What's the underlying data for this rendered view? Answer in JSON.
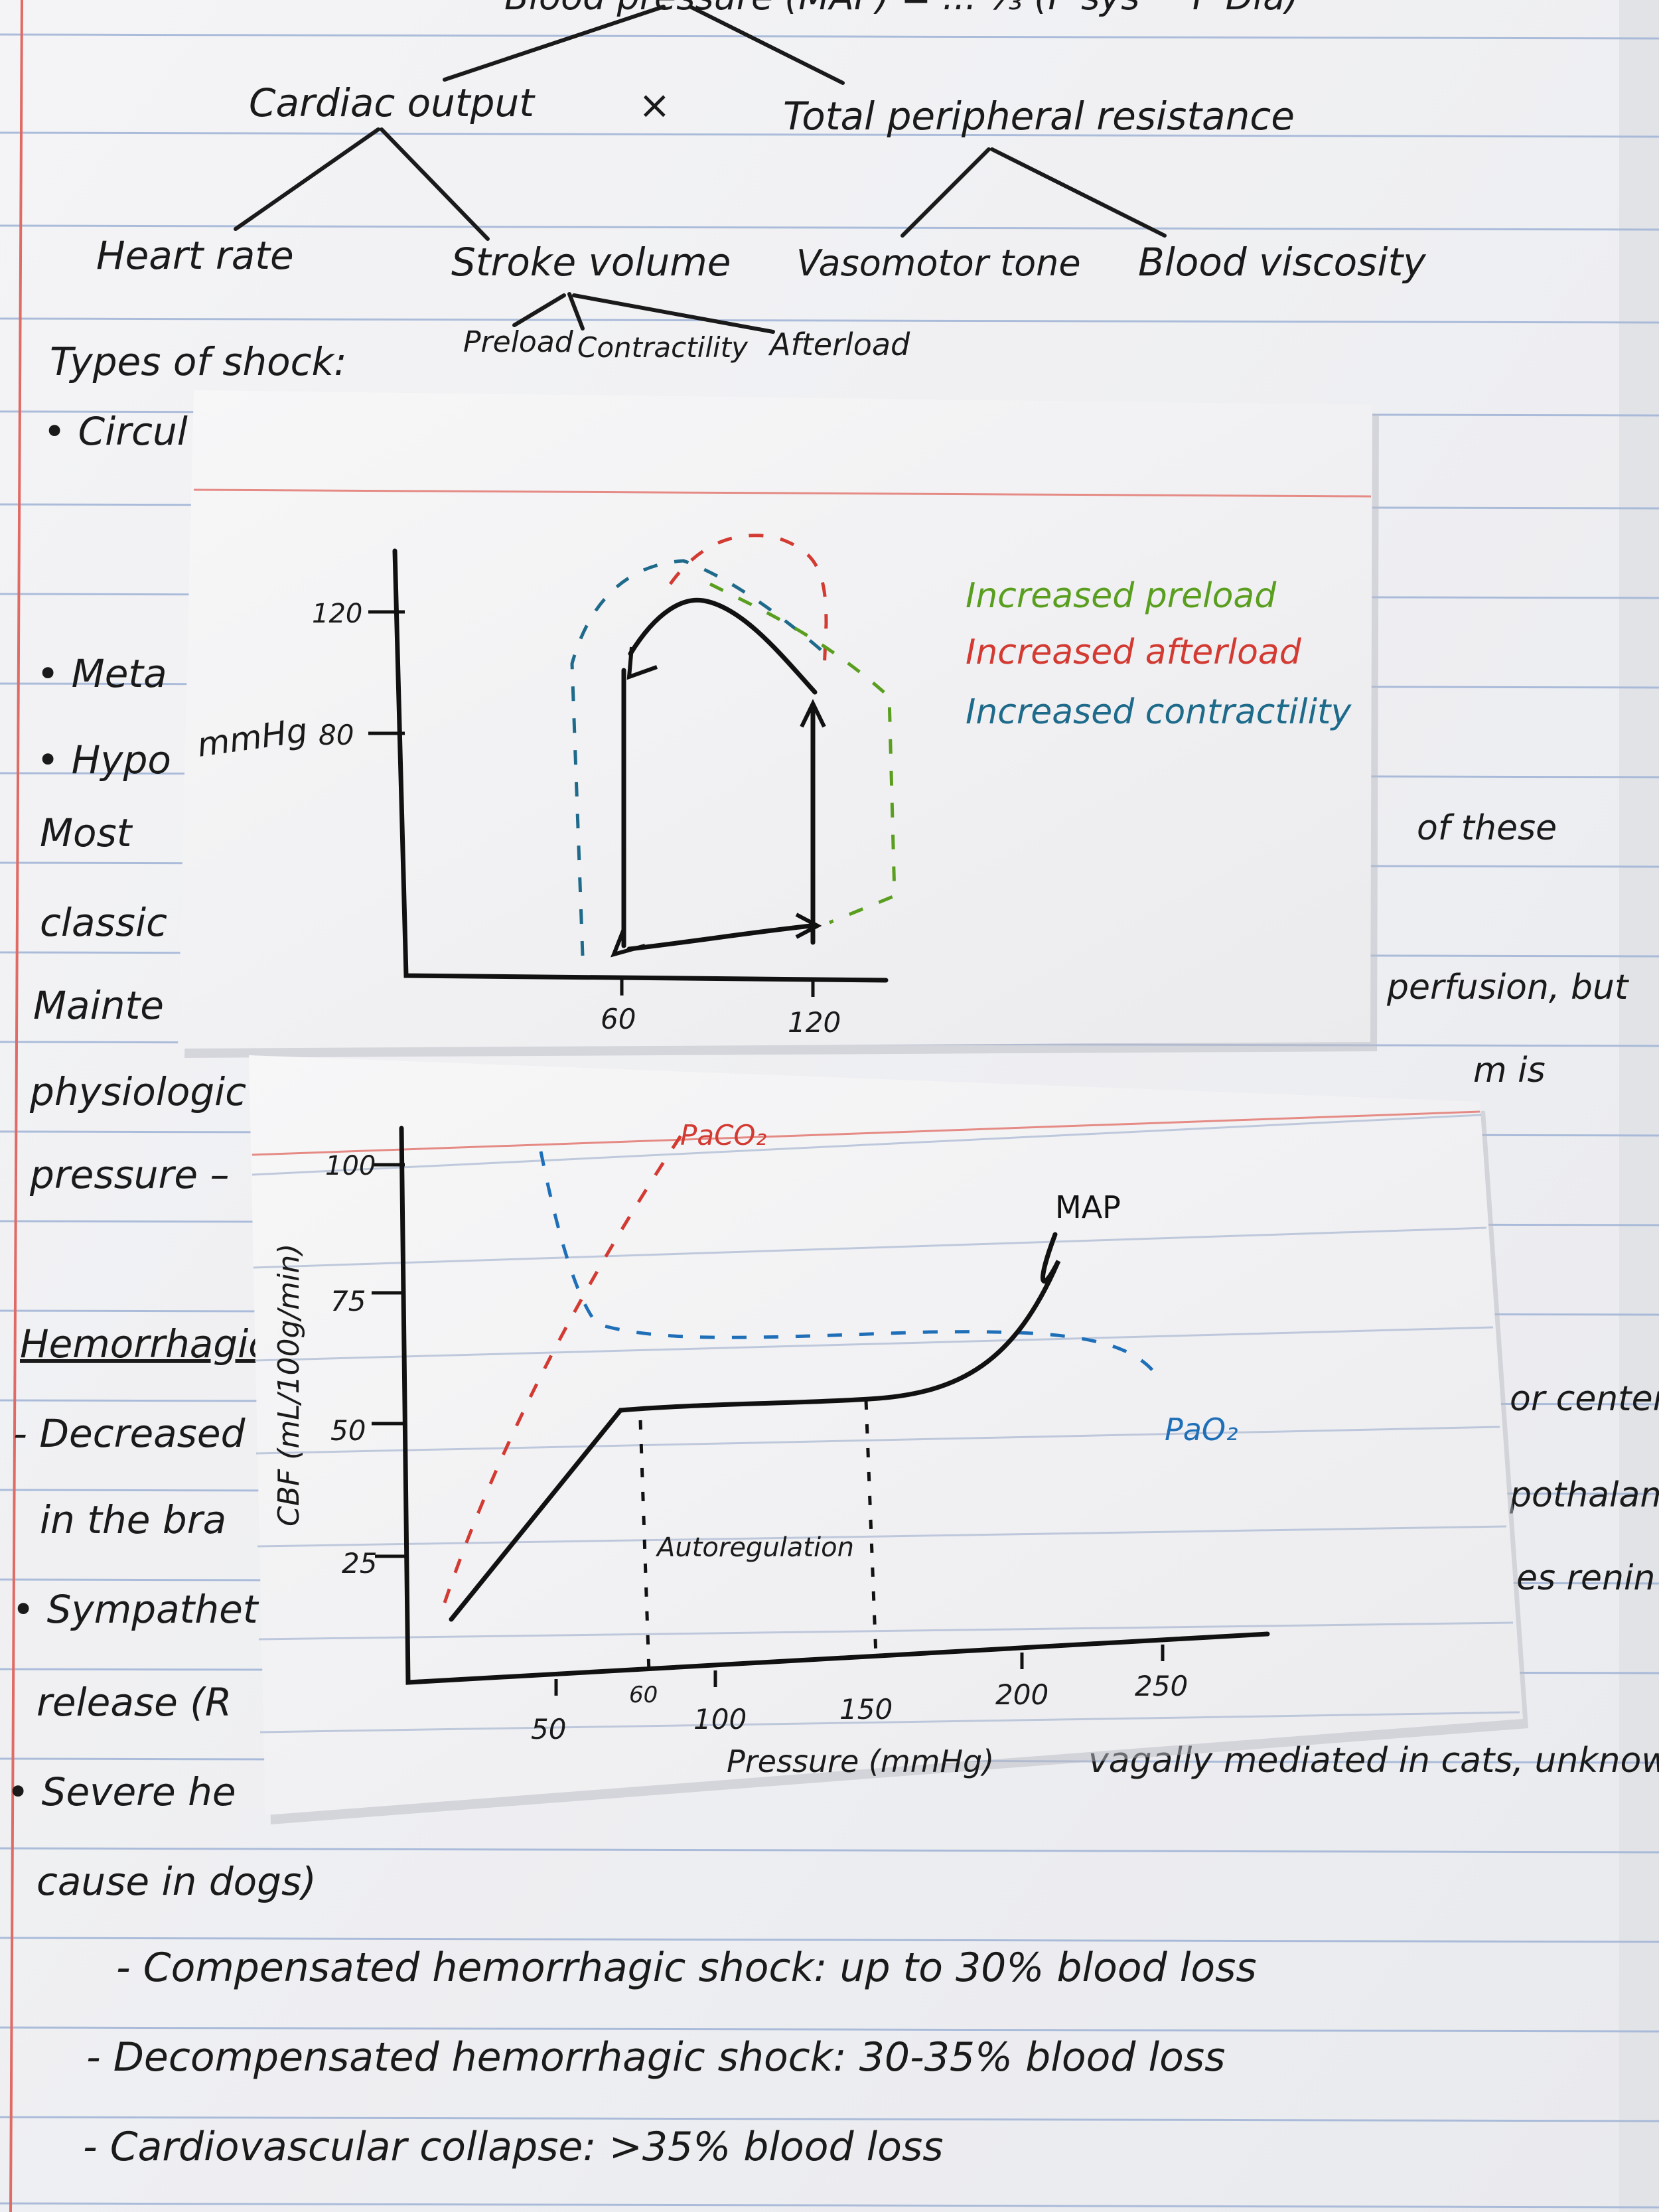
{
  "notebook": {
    "top_formula": {
      "partial": "Blood pressure (MAP) = ... ⅓ (P sys − P Dia)"
    },
    "tree": {
      "cardiac_output": "Cardiac output",
      "times": "×",
      "tpr": "Total peripheral resistance",
      "heart_rate": "Heart rate",
      "stroke_volume": "Stroke volume",
      "vasomotor_tone": "Vasomotor tone",
      "blood_viscosity": "Blood viscosity",
      "preload": "Preload",
      "contractility": "Contractility",
      "afterload": "Afterload"
    },
    "left_lines": {
      "types_of_shock": "Types of shock:",
      "circul": "• Circul",
      "meta": "• Meta",
      "hypo": "• Hypo",
      "most": "Most",
      "classic": "classic",
      "mainte": "Mainte",
      "physiologic": "physiologic",
      "pressure": "pressure –",
      "hemorrhagic": "Hemorrhagic",
      "decreased": "- Decreased",
      "in_the_bra": "in the bra",
      "sympathet": "• Sympathet",
      "release": "release (R",
      "severe": "• Severe he",
      "cause_in_dogs": "cause in dogs)"
    },
    "right_fragments": {
      "of_these": "of these",
      "perfusion_but": "perfusion, but",
      "m_is": "m is",
      "or_center": "or center",
      "pothalamu": "pothalamu",
      "es_renin": "es renin",
      "vagally": "vagally mediated in cats, unknow"
    },
    "bullets": [
      "- Compensated hemorrhagic shock: up to 30% blood loss",
      "- Decompensated hemorrhagic shock: 30-35% blood loss",
      "- Cardiovascular collapse: >35% blood loss"
    ]
  },
  "card_pv_loop": {
    "y_unit": "mmHg",
    "y_ticks": [
      "120",
      "80"
    ],
    "x_ticks": [
      "60",
      "120"
    ],
    "legend": [
      {
        "label": "Increased preload",
        "color": "#5a9e1f"
      },
      {
        "label": "Increased afterload",
        "color": "#d23a32"
      },
      {
        "label": "Increased contractility",
        "color": "#1e6a8a"
      }
    ]
  },
  "card_cbf": {
    "ylabel": "CBF (mL/100g/min)",
    "xlabel": "Pressure (mmHg)",
    "y_ticks": [
      "100",
      "75",
      "50",
      "25"
    ],
    "x_ticks": [
      "50",
      "60",
      "100",
      "150",
      "200",
      "250"
    ],
    "labels": {
      "paco2": "PaCO₂",
      "map": "MAP",
      "pao2": "PaO₂",
      "autoregulation": "Autoregulation"
    },
    "colors": {
      "paco2": "#d23a32",
      "pao2": "#1f6fb8",
      "map": "#111111"
    }
  }
}
